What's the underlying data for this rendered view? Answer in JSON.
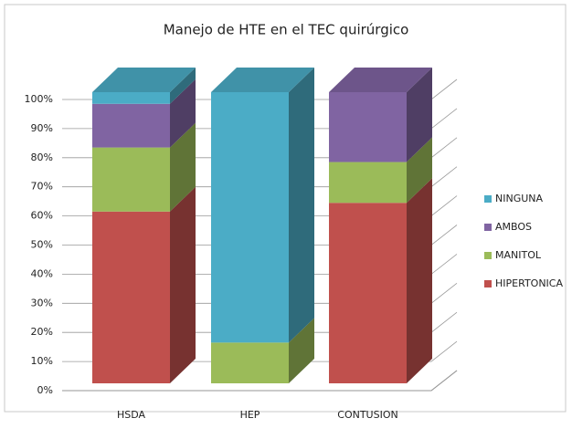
{
  "chart_data": {
    "type": "bar3d_stacked",
    "title": "Manejo de HTE en el TEC quirúrgico",
    "categories": [
      "HSDA",
      "HEP",
      "CONTUSION"
    ],
    "series": [
      {
        "name": "HIPERTONICA",
        "color": "#c0504d",
        "values": [
          59,
          0,
          62
        ]
      },
      {
        "name": "MANITOL",
        "color": "#9bbb59",
        "values": [
          22,
          14,
          14
        ]
      },
      {
        "name": "AMBOS",
        "color": "#8064a2",
        "values": [
          15,
          0,
          24
        ]
      },
      {
        "name": "NINGUNA",
        "color": "#4bacc6",
        "values": [
          4,
          86,
          0
        ]
      }
    ],
    "ylim": [
      0,
      100
    ],
    "yticks": [
      {
        "value": 0,
        "label": "0%"
      },
      {
        "value": 10,
        "label": "10%"
      },
      {
        "value": 20,
        "label": "20%"
      },
      {
        "value": 30,
        "label": "30%"
      },
      {
        "value": 40,
        "label": "40%"
      },
      {
        "value": 50,
        "label": "50%"
      },
      {
        "value": 60,
        "label": "60%"
      },
      {
        "value": 70,
        "label": "70%"
      },
      {
        "value": 80,
        "label": "80%"
      },
      {
        "value": 90,
        "label": "90%"
      },
      {
        "value": 100,
        "label": "100%"
      }
    ],
    "grid": true,
    "legend": "right"
  }
}
